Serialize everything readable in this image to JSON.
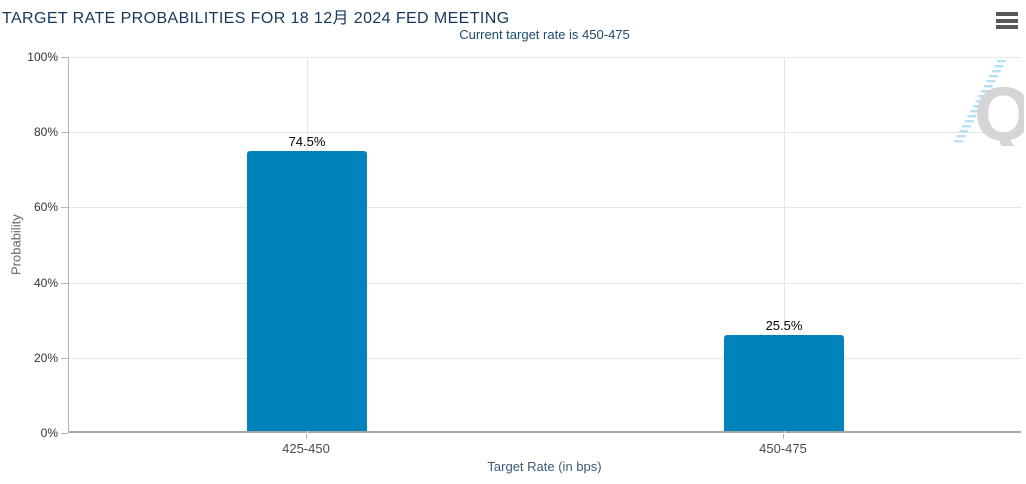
{
  "header": {
    "title": "TARGET RATE PROBABILITIES FOR 18 12月 2024 FED MEETING",
    "subtitle": "Current target rate is 450-475"
  },
  "menu": {
    "icon": "hamburger-icon"
  },
  "watermark": {
    "letter": "Q"
  },
  "colors": {
    "bar": "#0083ba",
    "title_text": "#16365c",
    "subtitle_text": "#1b4a6b",
    "watermark_letter": "#d5d5d5",
    "watermark_dashes": "#b4e2f4",
    "gridline": "#e6e6e6"
  },
  "chart_data": {
    "type": "bar",
    "title": "TARGET RATE PROBABILITIES FOR 18 12月 2024 FED MEETING",
    "subtitle": "Current target rate is 450-475",
    "categories": [
      "425-450",
      "450-475"
    ],
    "values": [
      74.5,
      25.5
    ],
    "value_labels": [
      "74.5%",
      "25.5%"
    ],
    "xlabel": "Target Rate (in bps)",
    "ylabel": "Probability",
    "ylim": [
      0,
      100
    ],
    "yticks": [
      0,
      20,
      40,
      60,
      80,
      100
    ],
    "ytick_labels": [
      "0%",
      "20%",
      "40%",
      "60%",
      "80%",
      "100%"
    ],
    "grid": true,
    "legend": false
  }
}
